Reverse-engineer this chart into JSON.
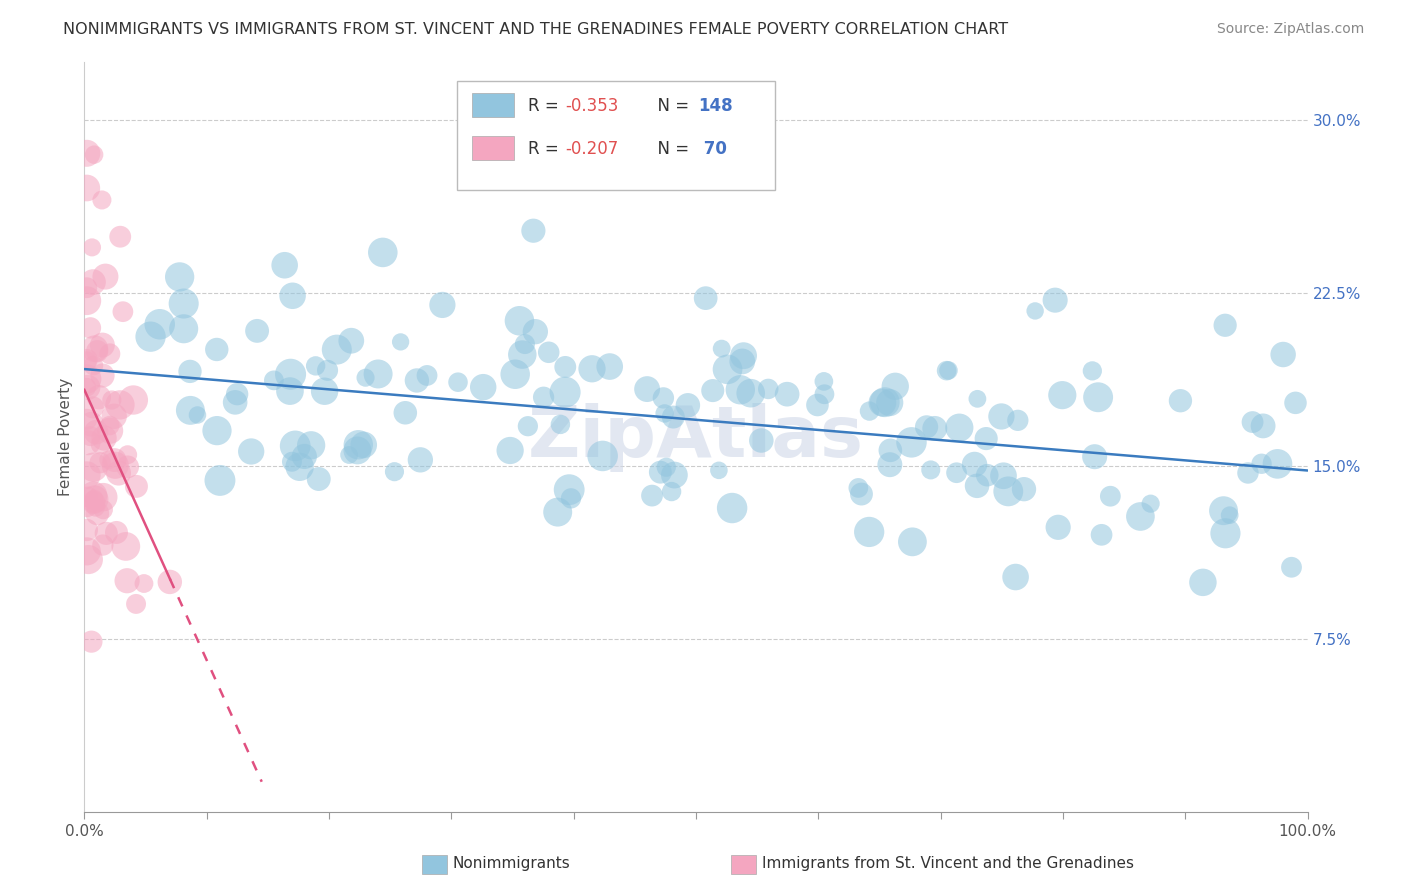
{
  "title": "NONIMMIGRANTS VS IMMIGRANTS FROM ST. VINCENT AND THE GRENADINES FEMALE POVERTY CORRELATION CHART",
  "source": "Source: ZipAtlas.com",
  "ylabel": "Female Poverty",
  "xlim": [
    0,
    1.0
  ],
  "ylim": [
    0.0,
    0.325
  ],
  "xticklabels_left": "0.0%",
  "xticklabels_right": "100.0%",
  "ytick_vals": [
    0.075,
    0.15,
    0.225,
    0.3
  ],
  "ytick_labels": [
    "7.5%",
    "15.0%",
    "22.5%",
    "30.0%"
  ],
  "legend_row1": "R = -0.353   N = 148",
  "legend_row2": "R = -0.207   N =  70",
  "color_blue": "#92c5de",
  "color_pink": "#f4a6c0",
  "line_blue": "#3a7bbf",
  "line_pink": "#e05080",
  "background": "#ffffff",
  "grid_color": "#cccccc",
  "blue_line_x": [
    0.0,
    1.0
  ],
  "blue_line_y": [
    0.192,
    0.148
  ],
  "pink_line_x": [
    0.0,
    0.145
  ],
  "pink_line_y": [
    0.183,
    0.013
  ]
}
